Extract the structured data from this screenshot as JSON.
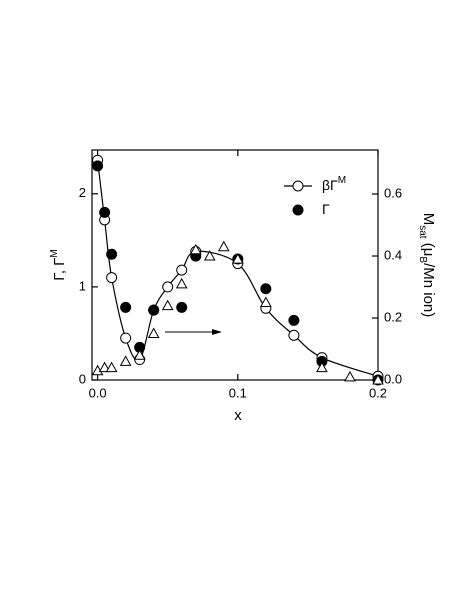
{
  "chart_data": {
    "type": "scatter",
    "x_label": "x",
    "y_label": {
      "text": "Γ, Γ",
      "sup": "M"
    },
    "y2_label": [
      {
        "t": "M"
      },
      {
        "t": "sat",
        "sub": true
      },
      {
        "t": "  (μ"
      },
      {
        "t": "B",
        "sub": true
      },
      {
        "t": "/Mn ion)"
      }
    ],
    "xlim": [
      -0.004,
      0.2
    ],
    "xticks": [
      {
        "value": 0,
        "label": "0.0"
      },
      0.1,
      0.2
    ],
    "ylim": [
      0,
      2.47
    ],
    "yticks": [
      0,
      1,
      2
    ],
    "y2lim": [
      0,
      0.742
    ],
    "y2ticks": [
      {
        "value": 0,
        "label": "0.0"
      },
      0.2,
      0.4,
      0.6
    ],
    "series": [
      {
        "name": "βΓ",
        "name_sup": "M",
        "marker": "open-circle",
        "line": true,
        "color": "#000",
        "x": [
          0,
          0.005,
          0.01,
          0.02,
          0.03,
          0.04,
          0.05,
          0.06,
          0.07,
          0.1,
          0.12,
          0.14,
          0.16,
          0.2
        ],
        "values": [
          2.36,
          1.72,
          1.1,
          0.45,
          0.22,
          0.75,
          1.0,
          1.18,
          1.38,
          1.25,
          0.77,
          0.48,
          0.24,
          0.04
        ]
      },
      {
        "name": "Γ",
        "marker": "filled-circle",
        "color": "#000",
        "x": [
          0,
          0.005,
          0.01,
          0.02,
          0.03,
          0.04,
          0.06,
          0.07,
          0.1,
          0.12,
          0.14,
          0.16,
          0.2
        ],
        "values": [
          2.3,
          1.8,
          1.35,
          0.78,
          0.35,
          0.75,
          0.78,
          1.33,
          1.3,
          0.98,
          0.64,
          0.2,
          0.0
        ]
      },
      {
        "marker": "open-triangle",
        "color": "#000",
        "axis": "y2",
        "x": [
          0,
          0.005,
          0.01,
          0.02,
          0.03,
          0.04,
          0.05,
          0.06,
          0.07,
          0.08,
          0.09,
          0.1,
          0.12,
          0.16,
          0.18,
          0.2
        ],
        "values": [
          0.03,
          0.04,
          0.04,
          0.06,
          0.08,
          0.15,
          0.24,
          0.31,
          0.42,
          0.4,
          0.43,
          0.39,
          0.25,
          0.04,
          0.01,
          0.0
        ]
      }
    ]
  }
}
